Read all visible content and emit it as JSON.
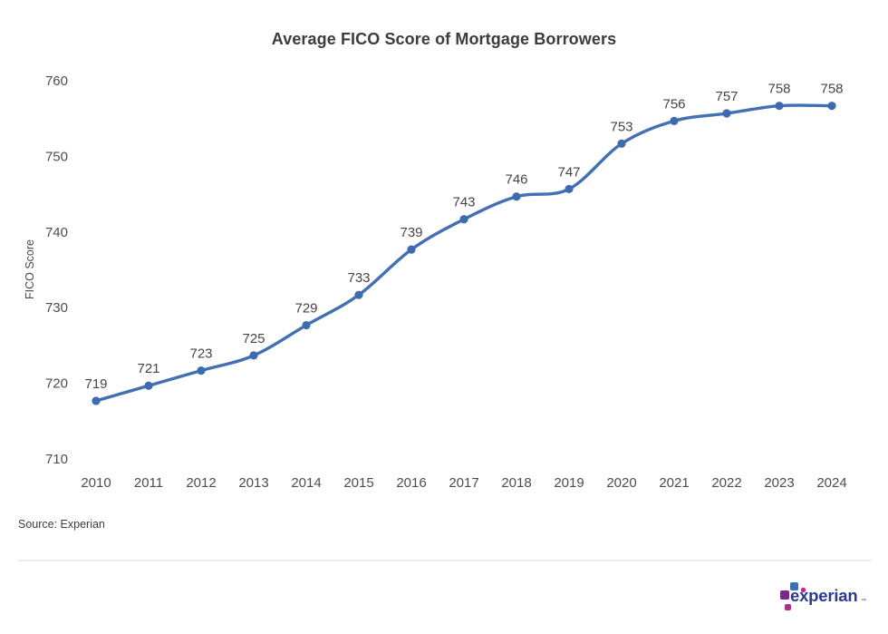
{
  "page": {
    "background": "#ffffff"
  },
  "chart_data": {
    "type": "line",
    "title": "Average FICO Score of Mortgage Borrowers",
    "categories": [
      "2010",
      "2011",
      "2012",
      "2013",
      "2014",
      "2015",
      "2016",
      "2017",
      "2018",
      "2019",
      "2020",
      "2021",
      "2022",
      "2023",
      "2024"
    ],
    "values": [
      719,
      721,
      723,
      725,
      729,
      733,
      739,
      743,
      746,
      747,
      753,
      756,
      757,
      758,
      758
    ],
    "xlabel": "",
    "ylabel": "FICO Score",
    "ylim": [
      710,
      760
    ],
    "yticks": [
      710,
      720,
      730,
      740,
      750,
      760
    ],
    "grid": false,
    "legend": "none",
    "point_labels_visible": true,
    "line_color": "#4270b2",
    "point_color": "#3e6bb0"
  },
  "footer": {
    "source": "Source: Experian",
    "logo": {
      "brand": "experian",
      "trademark": "™",
      "colors": {
        "text": "#2a3b8f",
        "blue": "#3f6eb5",
        "magenta": "#c2268e",
        "purple": "#7a2a8d",
        "pink": "#b22e86"
      }
    }
  }
}
